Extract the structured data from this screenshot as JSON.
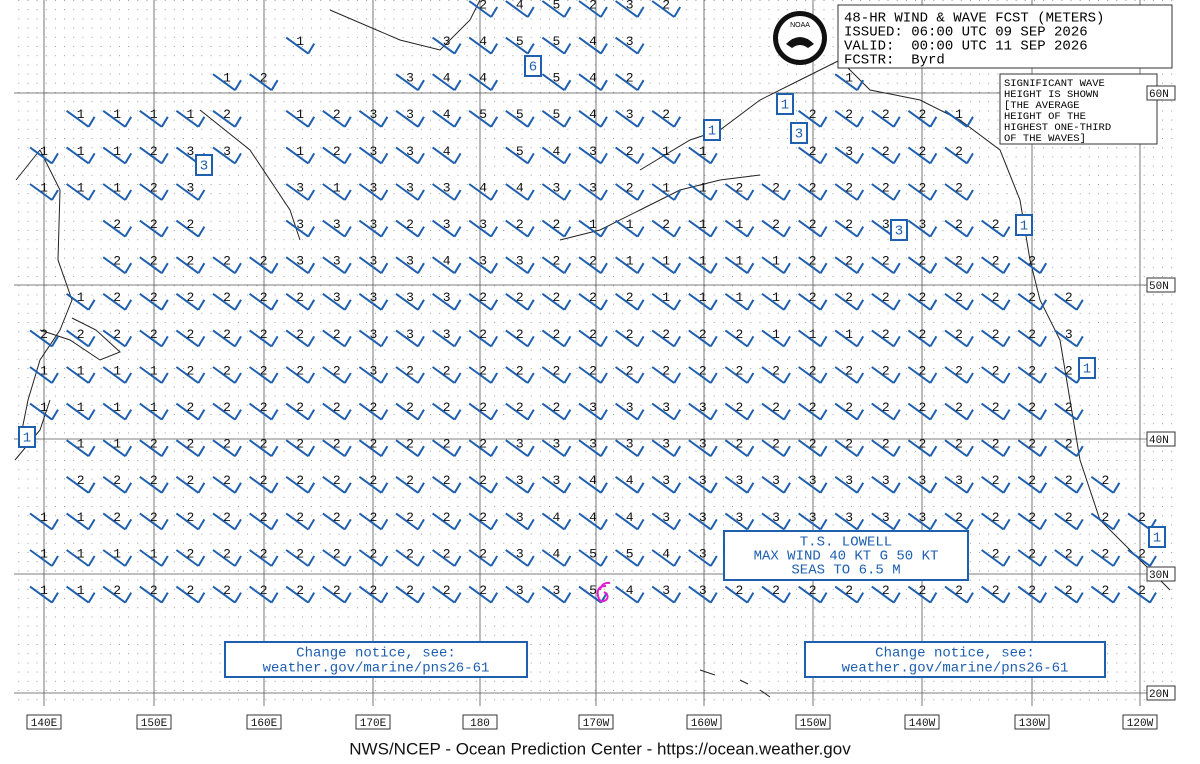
{
  "header": {
    "title": "48-HR WIND & WAVE FCST (METERS)",
    "issued": "ISSUED: 06:00 UTC 09 SEP 2026",
    "valid": "VALID:  00:00 UTC 11 SEP 2026",
    "forecaster": "FCSTR:  Byrd",
    "logo": "NOAA"
  },
  "note": [
    "SIGNIFICANT WAVE",
    "HEIGHT IS SHOWN",
    "[THE AVERAGE",
    "HEIGHT OF THE",
    "HIGHEST ONE-THIRD",
    "OF THE WAVES]"
  ],
  "storm": [
    "T.S. LOWELL",
    "MAX WIND 40 KT G 50 KT",
    "SEAS TO 6.5 M"
  ],
  "notices": [
    [
      "Change notice, see:",
      "weather.gov/marine/pns26-61"
    ],
    [
      "Change notice, see:",
      "weather.gov/marine/pns26-61"
    ]
  ],
  "latitudes": [
    "60N",
    "50N",
    "40N",
    "30N",
    "20N"
  ],
  "longitudes": [
    "140E",
    "150E",
    "160E",
    "170E",
    "180",
    "170W",
    "160W",
    "150W",
    "140W",
    "130W",
    "120W"
  ],
  "boxed_values": [
    6,
    3,
    1,
    1,
    3,
    3,
    1,
    1,
    1,
    1
  ],
  "wave_heights": [
    [
      null,
      null,
      null,
      null,
      null,
      null,
      null,
      null,
      null,
      null,
      null,
      null,
      2,
      4,
      5,
      2,
      3,
      2,
      null,
      null,
      null,
      null,
      null,
      null,
      null,
      null,
      null,
      null,
      null,
      null,
      null
    ],
    [
      null,
      null,
      null,
      null,
      null,
      null,
      null,
      1,
      null,
      null,
      null,
      3,
      4,
      5,
      5,
      4,
      3,
      null,
      null,
      null,
      null,
      null,
      null,
      null,
      null,
      null,
      null,
      null,
      null,
      null,
      null
    ],
    [
      null,
      null,
      null,
      null,
      null,
      1,
      2,
      null,
      null,
      null,
      3,
      4,
      4,
      null,
      5,
      4,
      2,
      null,
      null,
      null,
      null,
      null,
      1,
      null,
      null,
      null,
      null,
      null,
      null,
      null,
      null
    ],
    [
      null,
      1,
      1,
      1,
      1,
      2,
      null,
      1,
      2,
      3,
      3,
      4,
      5,
      5,
      5,
      4,
      3,
      2,
      null,
      null,
      null,
      2,
      2,
      2,
      2,
      1,
      null,
      null,
      null,
      null,
      null
    ],
    [
      1,
      1,
      1,
      2,
      3,
      3,
      null,
      1,
      2,
      3,
      3,
      4,
      null,
      5,
      4,
      3,
      2,
      1,
      1,
      null,
      null,
      2,
      3,
      2,
      2,
      2,
      null,
      null,
      null,
      null,
      null
    ],
    [
      1,
      1,
      1,
      2,
      3,
      null,
      null,
      3,
      1,
      3,
      3,
      3,
      4,
      4,
      3,
      3,
      2,
      1,
      1,
      2,
      2,
      2,
      2,
      2,
      2,
      2,
      null,
      null,
      null,
      null,
      null
    ],
    [
      null,
      null,
      2,
      2,
      2,
      null,
      null,
      3,
      3,
      3,
      2,
      3,
      3,
      2,
      2,
      1,
      1,
      2,
      1,
      1,
      2,
      2,
      2,
      3,
      3,
      2,
      2,
      null,
      null,
      null,
      null
    ],
    [
      null,
      null,
      2,
      2,
      2,
      2,
      2,
      3,
      3,
      3,
      3,
      4,
      3,
      3,
      2,
      2,
      1,
      1,
      1,
      1,
      1,
      2,
      2,
      2,
      2,
      2,
      2,
      2,
      null,
      null,
      null
    ],
    [
      null,
      1,
      2,
      2,
      2,
      2,
      2,
      2,
      3,
      3,
      3,
      3,
      2,
      2,
      2,
      2,
      2,
      1,
      1,
      1,
      1,
      2,
      2,
      2,
      2,
      2,
      2,
      2,
      2,
      null,
      null
    ],
    [
      2,
      2,
      2,
      2,
      2,
      2,
      2,
      2,
      2,
      3,
      3,
      3,
      2,
      2,
      2,
      2,
      2,
      2,
      2,
      2,
      1,
      1,
      1,
      2,
      2,
      2,
      2,
      2,
      3,
      null,
      null
    ],
    [
      1,
      1,
      1,
      1,
      2,
      2,
      2,
      2,
      2,
      3,
      2,
      2,
      2,
      2,
      2,
      2,
      2,
      2,
      2,
      2,
      2,
      2,
      2,
      2,
      2,
      2,
      2,
      2,
      2,
      null,
      null
    ],
    [
      1,
      1,
      1,
      1,
      2,
      2,
      2,
      2,
      2,
      2,
      2,
      2,
      2,
      2,
      2,
      3,
      3,
      3,
      3,
      2,
      2,
      2,
      2,
      2,
      2,
      2,
      2,
      2,
      2,
      null,
      null
    ],
    [
      null,
      1,
      1,
      2,
      2,
      2,
      2,
      2,
      2,
      2,
      2,
      2,
      2,
      3,
      3,
      3,
      3,
      3,
      3,
      2,
      2,
      2,
      2,
      2,
      2,
      2,
      2,
      2,
      2,
      null,
      null
    ],
    [
      null,
      2,
      2,
      2,
      2,
      2,
      2,
      2,
      2,
      2,
      2,
      2,
      2,
      3,
      3,
      4,
      4,
      3,
      3,
      3,
      3,
      3,
      3,
      3,
      3,
      3,
      2,
      2,
      2,
      2,
      null
    ],
    [
      1,
      1,
      2,
      2,
      2,
      2,
      2,
      2,
      2,
      2,
      2,
      2,
      2,
      3,
      4,
      4,
      4,
      3,
      3,
      3,
      3,
      3,
      3,
      3,
      3,
      2,
      2,
      2,
      2,
      2,
      2
    ],
    [
      1,
      1,
      1,
      1,
      2,
      2,
      2,
      2,
      2,
      2,
      2,
      2,
      2,
      3,
      4,
      5,
      5,
      4,
      3,
      null,
      null,
      null,
      null,
      null,
      null,
      null,
      2,
      2,
      2,
      2,
      2
    ],
    [
      1,
      1,
      2,
      2,
      2,
      2,
      2,
      2,
      2,
      2,
      2,
      2,
      2,
      3,
      3,
      5,
      4,
      3,
      3,
      2,
      2,
      2,
      2,
      2,
      2,
      2,
      2,
      2,
      2,
      2,
      2
    ]
  ],
  "footer": "NWS/NCEP - Ocean Prediction Center - https://ocean.weather.gov"
}
